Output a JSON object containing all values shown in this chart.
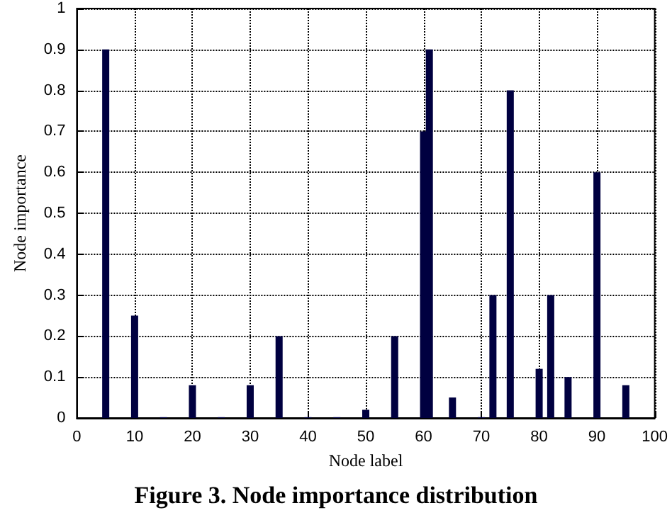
{
  "chart_data": {
    "type": "bar",
    "title": "Figure 3. Node importance distribution",
    "xlabel": "Node label",
    "ylabel": "Node importance",
    "x": [
      5,
      10,
      15,
      20,
      25,
      30,
      35,
      40,
      45,
      50,
      55,
      60,
      61,
      65,
      70,
      72,
      75,
      80,
      82,
      85,
      90,
      95
    ],
    "values": [
      0.9,
      0.25,
      0.002,
      0.08,
      0.002,
      0.08,
      0.2,
      0.002,
      0.002,
      0.02,
      0.2,
      0.7,
      0.9,
      0.05,
      0.002,
      0.3,
      0.8,
      0.12,
      0.3,
      0.1,
      0.6,
      0.08
    ],
    "color": "#000040",
    "xlim": [
      0,
      100
    ],
    "xticks": [
      0,
      10,
      20,
      30,
      40,
      50,
      60,
      70,
      80,
      90,
      100
    ],
    "ylim": [
      0,
      1
    ],
    "yticks": [
      0,
      0.1,
      0.2,
      0.3,
      0.4,
      0.5,
      0.6,
      0.7,
      0.8,
      0.9,
      1
    ],
    "grid": true,
    "line_style": "dotted"
  }
}
